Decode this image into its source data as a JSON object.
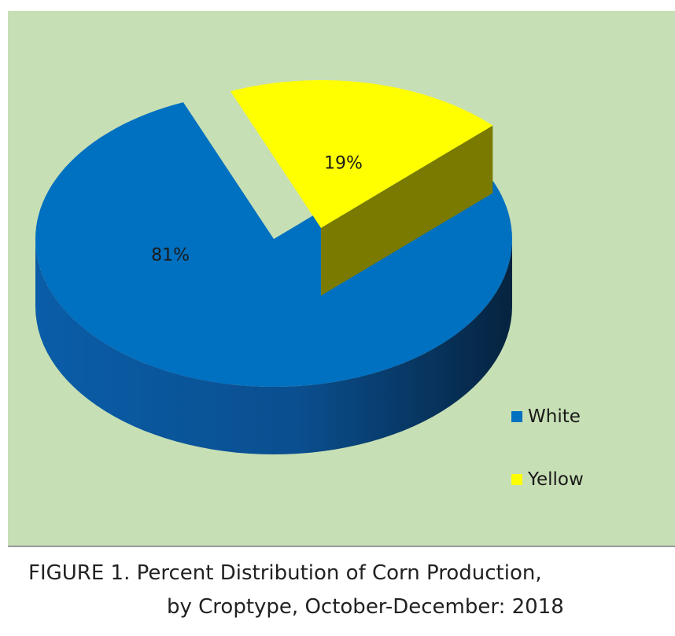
{
  "chart_data": {
    "type": "pie",
    "style": "3d-exploded",
    "categories": [
      "White",
      "Yellow"
    ],
    "values": [
      81,
      19
    ],
    "data_labels": [
      "81%",
      "19%"
    ],
    "colors": [
      "#0070c0",
      "#ffff00"
    ],
    "legend": {
      "placement": "bottom-right",
      "entries": [
        "White",
        "Yellow"
      ]
    },
    "background": "#c7dfb4"
  },
  "caption": {
    "line1": "FIGURE 1.   Percent Distribution of Corn Production,",
    "line2": "by Croptype, October-December: 2018"
  }
}
